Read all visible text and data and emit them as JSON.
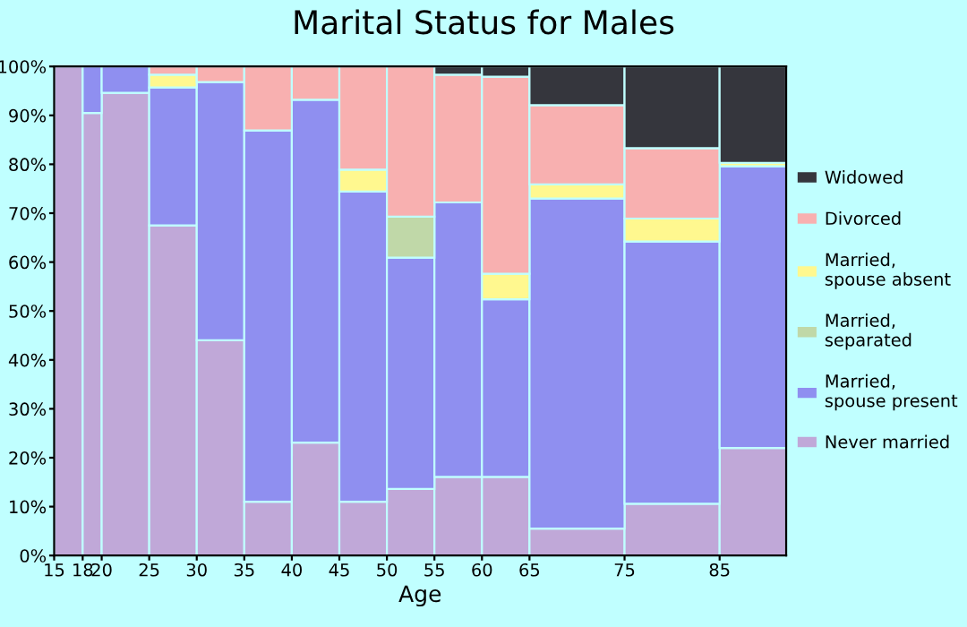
{
  "chart_data": {
    "type": "bar",
    "stacked": true,
    "title": "Marital Status for Males",
    "xlabel": "Age",
    "x": [
      16.5,
      19,
      22.5,
      27.5,
      32.5,
      37.5,
      42.5,
      47.5,
      52.5,
      57.5,
      62.5,
      70,
      80,
      88.5
    ],
    "xlim": [
      15,
      92
    ],
    "xticks": [
      15,
      18,
      20,
      25,
      30,
      35,
      40,
      45,
      50,
      55,
      60,
      65,
      75,
      85
    ],
    "ylim": [
      0,
      100
    ],
    "yticks": [
      {
        "value": 0,
        "label": "0%"
      },
      {
        "value": 10,
        "label": "10%"
      },
      {
        "value": 20,
        "label": "20%"
      },
      {
        "value": 30,
        "label": "30%"
      },
      {
        "value": 40,
        "label": "40%"
      },
      {
        "value": 50,
        "label": "50%"
      },
      {
        "value": 60,
        "label": "60%"
      },
      {
        "value": 70,
        "label": "70%"
      },
      {
        "value": 80,
        "label": "80%"
      },
      {
        "value": 90,
        "label": "90%"
      },
      {
        "value": 100,
        "label": "100%"
      }
    ],
    "grid": false,
    "legend": "right",
    "series": [
      {
        "name": "Never married",
        "color": "#c0a8d8",
        "values": [
          100,
          90.5,
          94.6,
          67.5,
          44,
          11,
          23.1,
          11,
          13.6,
          16.1,
          16.1,
          5.5,
          10.6,
          22
        ]
      },
      {
        "name": "Married, spouse present",
        "color": "#8f8ff0",
        "values": [
          0,
          9.5,
          5.4,
          28.2,
          52.8,
          75.9,
          70.1,
          63.4,
          47.3,
          56.1,
          36.3,
          67.5,
          53.6,
          57.6
        ]
      },
      {
        "name": "Married, separated",
        "color": "#c0d8a8",
        "values": [
          0,
          0,
          0,
          0,
          0,
          0,
          0,
          0,
          8.4,
          0,
          0,
          0,
          0,
          0
        ]
      },
      {
        "name": "Married, spouse absent",
        "color": "#fff88f",
        "values": [
          0,
          0,
          0,
          2.6,
          0,
          0,
          0,
          4.5,
          0,
          0,
          5.2,
          2.9,
          4.7,
          0.7
        ]
      },
      {
        "name": "Divorced",
        "color": "#f8b0b0",
        "values": [
          0,
          0,
          0,
          1.7,
          3.2,
          13.1,
          6.8,
          21.1,
          30.7,
          26.1,
          40.3,
          16.2,
          14.4,
          0
        ]
      },
      {
        "name": "Widowed",
        "color": "#35363d",
        "values": [
          0,
          0,
          0,
          0,
          0,
          0,
          0,
          0,
          0,
          1.7,
          2.1,
          7.9,
          16.7,
          19.7
        ]
      }
    ]
  }
}
